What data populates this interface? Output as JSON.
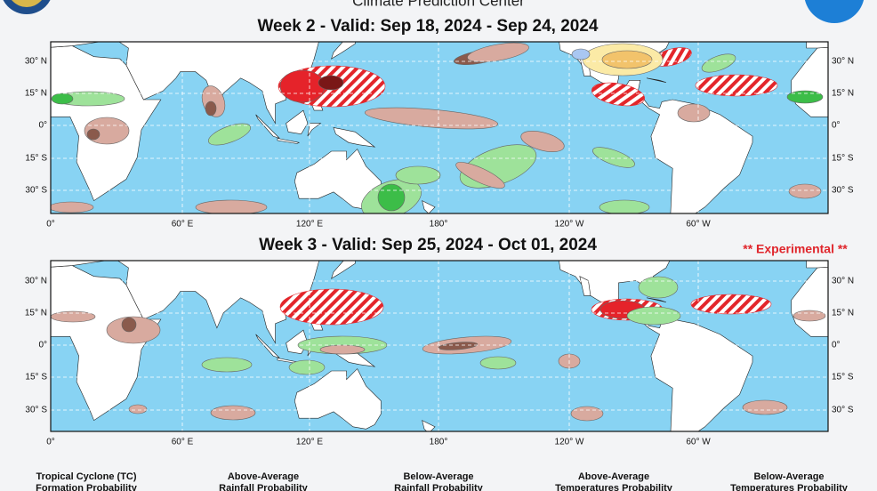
{
  "header": {
    "title": "Climate Prediction Center"
  },
  "panels": [
    {
      "title": "Week 2 - Valid: Sep 18, 2024 - Sep 24, 2024",
      "latitude_labels": [
        "30° N",
        "15° N",
        "0°",
        "15° S",
        "30° S"
      ],
      "longitude_labels": [
        "0°",
        "60° E",
        "120° E",
        "180°",
        "120° W",
        "60° W"
      ]
    },
    {
      "title": "Week 3 - Valid: Sep 25, 2024 - Oct 01, 2024",
      "note": "** Experimental **",
      "latitude_labels": [
        "30° N",
        "15° N",
        "0°",
        "15° S",
        "30° S"
      ],
      "longitude_labels": [
        "0°",
        "60° E",
        "120° E",
        "180°",
        "120° W",
        "60° W"
      ]
    }
  ],
  "legend": [
    {
      "line1": "Tropical Cyclone (TC)",
      "line2": "Formation Probability"
    },
    {
      "line1": "Above-Average",
      "line2": "Rainfall Probability"
    },
    {
      "line1": "Below-Average",
      "line2": "Rainfall Probability"
    },
    {
      "line1": "Above-Average",
      "line2": "Temperatures Probability"
    },
    {
      "line1": "Below-Average",
      "line2": "Temperatures Probability"
    }
  ]
}
